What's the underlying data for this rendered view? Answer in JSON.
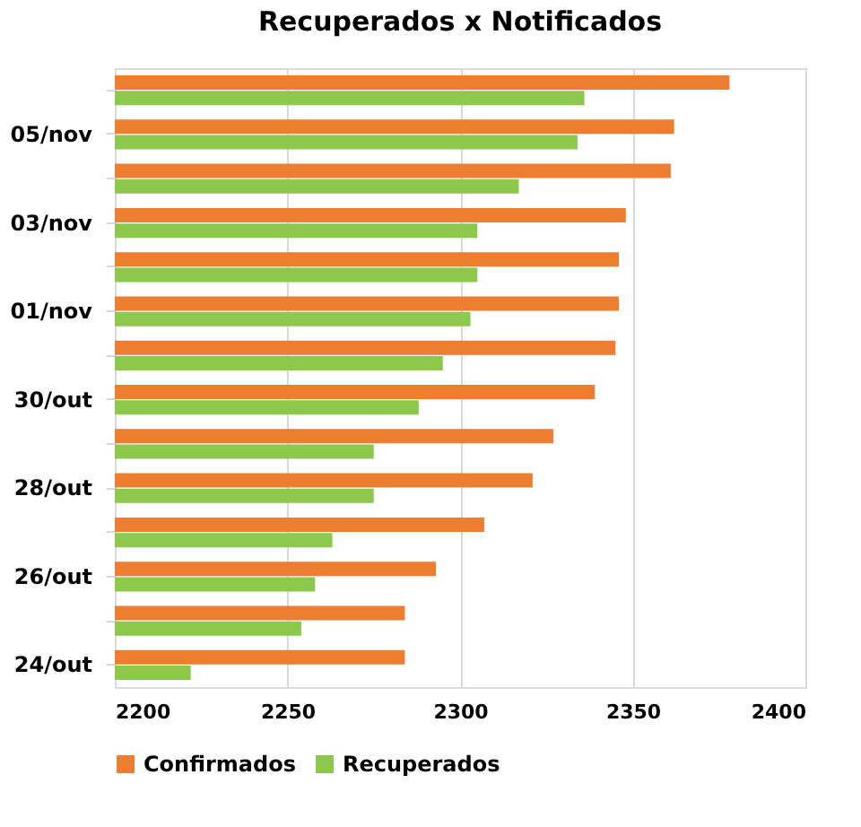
{
  "chart_data": {
    "type": "bar",
    "orientation": "horizontal",
    "title": "Recuperados x Notificados",
    "categories": [
      null,
      "05/nov",
      null,
      "03/nov",
      null,
      "01/nov",
      null,
      "30/out",
      null,
      "28/out",
      null,
      "26/out",
      null,
      "24/out"
    ],
    "series": [
      {
        "name": "Confirmados",
        "color": "#ed7d31",
        "values": [
          2378,
          2362,
          2361,
          2348,
          2346,
          2346,
          2345,
          2339,
          2327,
          2321,
          2307,
          2293,
          2284,
          2284
        ]
      },
      {
        "name": "Recuperados",
        "color": "#8cc84b",
        "values": [
          2336,
          2334,
          2317,
          2305,
          2305,
          2303,
          2295,
          2288,
          2275,
          2275,
          2263,
          2258,
          2254,
          2222
        ]
      }
    ],
    "xlim": [
      2200,
      2400
    ],
    "xticks": [
      2200,
      2250,
      2300,
      2350,
      2400
    ],
    "grid": "x",
    "legend": "bottom"
  }
}
